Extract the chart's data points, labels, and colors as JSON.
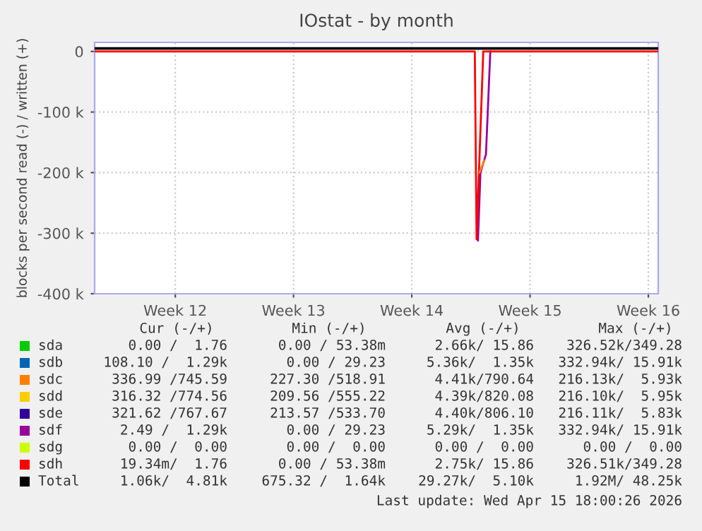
{
  "chart_data": {
    "type": "line",
    "title": "IOstat - by month",
    "ylabel": "blocks per second read (-) / written (+)",
    "xlim": [
      "2026-03-14T17:30",
      "2026-04-17T02:00"
    ],
    "xticks": [
      {
        "value": "2026-03-19T12:00",
        "label": "Week 12"
      },
      {
        "value": "2026-03-26T12:00",
        "label": "Week 13"
      },
      {
        "value": "2026-04-02T12:00",
        "label": "Week 14"
      },
      {
        "value": "2026-04-09T12:00",
        "label": "Week 15"
      },
      {
        "value": "2026-04-16T12:00",
        "label": "Week 16"
      }
    ],
    "ylim": [
      -400000,
      15000
    ],
    "yticks": [
      {
        "value": -400000,
        "label": "-400 k"
      },
      {
        "value": -300000,
        "label": "-300 k"
      },
      {
        "value": -200000,
        "label": "-200 k"
      },
      {
        "value": -100000,
        "label": "-100 k"
      },
      0
    ],
    "grid": true,
    "legend": "bottom",
    "line_style": "solid",
    "marker": "none",
    "series": [
      {
        "name": "sda",
        "color": "#00cc00"
      },
      {
        "name": "sdb",
        "color": "#0066b3"
      },
      {
        "name": "sdc",
        "color": "#ff8000",
        "x": [
          "2026-04-06T12:00",
          "2026-04-06T19:00"
        ],
        "values": [
          -200000,
          -180000
        ]
      },
      {
        "name": "sdd",
        "color": "#ffcc00"
      },
      {
        "name": "sde",
        "color": "#330099"
      },
      {
        "name": "sdf",
        "color": "#990099",
        "x": [
          "2026-04-06T10:00",
          "2026-04-06T13:30",
          "2026-04-06T21:20",
          "2026-04-07T03:30"
        ],
        "values": [
          -312000,
          -200000,
          -170000,
          0
        ]
      },
      {
        "name": "sdg",
        "color": "#ccff00"
      },
      {
        "name": "sdh",
        "color": "#ff0000",
        "x": [
          "2026-03-14T17:30",
          "2026-04-06T05:30",
          "2026-04-06T08:00",
          "2026-04-06T17:30",
          "2026-04-17T02:00"
        ],
        "values": [
          0,
          0,
          -310000,
          0,
          0
        ]
      },
      {
        "name": "Total",
        "color": "#000000",
        "x": [
          "2026-03-14T17:30",
          "2026-04-17T02:00"
        ],
        "values": [
          5000,
          5000
        ]
      }
    ],
    "annotations": [
      "Cur (-/+)",
      "Min (-/+)",
      "Avg (-/+)",
      "Max (-/+)",
      "0.00 /  1.76",
      "0.00 / 53.38m",
      "2.66k/ 15.86",
      "326.52k/349.28",
      "108.10 /  1.29k",
      "0.00 / 29.23",
      "5.36k/  1.35k",
      "332.94k/ 15.91k",
      "336.99 /745.59",
      "227.30 /518.91",
      "4.41k/790.64",
      "216.13k/  5.93k",
      "316.32 /774.56",
      "209.56 /555.22",
      "4.39k/820.08",
      "216.10k/  5.95k",
      "321.62 /767.67",
      "213.57 /533.70",
      "4.40k/806.10",
      "216.11k/  5.83k",
      "2.49 /  1.29k",
      "0.00 / 29.23",
      "5.29k/  1.35k",
      "332.94k/ 15.91k",
      "0.00 /  0.00",
      "0.00 /  0.00",
      "0.00 /  0.00",
      "0.00 /  0.00",
      "19.34m/  1.76",
      "0.00 / 53.38m",
      "2.75k/ 15.86",
      "326.51k/349.28",
      "1.06k/  4.81k",
      "675.32 /  1.64k",
      "29.27k/  5.10k",
      "1.92M/ 48.25k",
      "Last update: Wed Apr 15 18:00:26 2026"
    ]
  }
}
